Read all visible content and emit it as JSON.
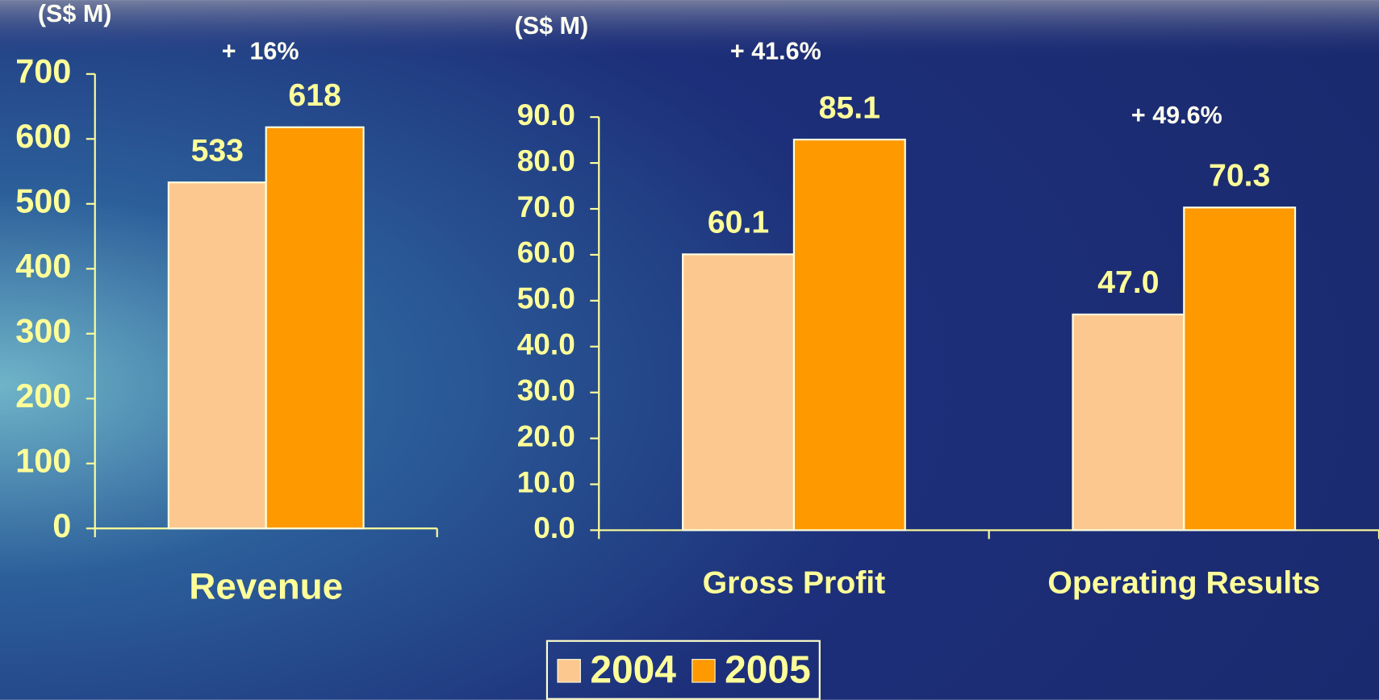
{
  "chart_data": [
    {
      "type": "bar",
      "y_label": "(S$ M)",
      "annotations": [
        "+  16%"
      ],
      "categories": [
        "Revenue"
      ],
      "series": [
        {
          "color": "#fcc890",
          "values": [
            533
          ]
        },
        {
          "color": "#ff9900",
          "values": [
            618
          ]
        }
      ],
      "ylim": [
        0,
        700
      ],
      "yticks": [
        0,
        100,
        200,
        300,
        400,
        500,
        600,
        700
      ]
    },
    {
      "type": "bar",
      "y_label": "(S$ M)",
      "annotations": [
        "+ 41.6%",
        "+ 49.6%"
      ],
      "categories": [
        "Gross Profit",
        "Operating Results"
      ],
      "series": [
        {
          "name": "2004",
          "color": "#fcc890",
          "values": [
            60.1,
            47.0
          ],
          "value_labels": [
            "60.1",
            "47.0"
          ]
        },
        {
          "name": "2005",
          "color": "#ff9900",
          "values": [
            85.1,
            70.3
          ],
          "value_labels": [
            "85.1",
            "70.3"
          ]
        }
      ],
      "ylim": [
        0,
        90
      ],
      "yticks": [
        {
          "value": 0,
          "label": "0.0"
        },
        {
          "value": 10,
          "label": "10.0"
        },
        {
          "value": 20,
          "label": "20.0"
        },
        {
          "value": 30,
          "label": "30.0"
        },
        {
          "value": 40,
          "label": "40.0"
        },
        {
          "value": 50,
          "label": "50.0"
        },
        {
          "value": 60,
          "label": "60.0"
        },
        {
          "value": 70,
          "label": "70.0"
        },
        {
          "value": 80,
          "label": "80.0"
        },
        {
          "value": 90,
          "label": "90.0"
        }
      ],
      "legend": "bottom"
    }
  ]
}
